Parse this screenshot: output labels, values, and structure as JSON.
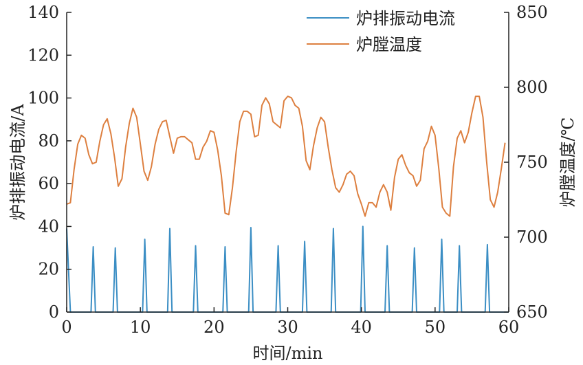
{
  "chart_data": {
    "type": "line",
    "xlabel": "时间/min",
    "ylabel_left": "炉排振动电流/A",
    "ylabel_right": "炉膛温度/℃",
    "xlim": [
      0,
      60
    ],
    "ylim_left": [
      0,
      140
    ],
    "ylim_right": [
      650,
      850
    ],
    "x_ticks": [
      0,
      10,
      20,
      30,
      40,
      50,
      60
    ],
    "y_ticks_left": [
      0,
      20,
      40,
      60,
      80,
      100,
      120,
      140
    ],
    "y_ticks_right": [
      650,
      700,
      750,
      800,
      850
    ],
    "grid": false,
    "legend_position": "top-right",
    "colors": {
      "current": "#3b8ec4",
      "temperature": "#dd7f3f"
    },
    "series": [
      {
        "name": "炉排振动电流",
        "axis": "left",
        "x": [
          0,
          0.5,
          3.3,
          3.6,
          3.9,
          6.3,
          6.6,
          6.9,
          10.3,
          10.6,
          10.9,
          13.7,
          14.0,
          14.3,
          17.2,
          17.5,
          17.8,
          21.2,
          21.5,
          21.8,
          24.7,
          25.0,
          25.3,
          28.4,
          28.7,
          29.0,
          32.0,
          32.3,
          32.6,
          35.9,
          36.2,
          36.5,
          39.9,
          40.2,
          40.5,
          43.2,
          43.5,
          43.8,
          46.9,
          47.2,
          47.5,
          50.6,
          50.9,
          51.2,
          53.0,
          53.3,
          53.6,
          56.8,
          57.1,
          57.4,
          60
        ],
        "values": [
          39,
          0,
          0,
          30.5,
          0,
          0,
          30,
          0,
          0,
          34,
          0,
          0,
          39,
          0,
          0,
          31,
          0,
          0,
          30.5,
          0,
          0,
          39.5,
          0,
          0,
          31,
          0,
          0,
          33,
          0,
          0,
          39,
          0,
          0,
          40,
          0,
          0,
          31,
          0,
          0,
          30,
          0,
          0,
          34,
          0,
          0,
          31,
          0,
          0,
          31.5,
          0,
          0
        ]
      },
      {
        "name": "炉膛温度",
        "axis": "right",
        "x": [
          0,
          0.5,
          1.0,
          1.5,
          2.0,
          2.5,
          3.0,
          3.5,
          4.0,
          4.5,
          5.0,
          5.5,
          6.0,
          6.5,
          7.0,
          7.5,
          8.0,
          8.5,
          9.0,
          9.5,
          10.0,
          10.5,
          11.0,
          11.5,
          12.0,
          12.5,
          13.0,
          13.5,
          14.0,
          14.5,
          15.0,
          15.5,
          16.0,
          16.5,
          17.0,
          17.5,
          18.0,
          18.5,
          19.0,
          19.5,
          20.0,
          20.5,
          21.0,
          21.5,
          22.0,
          22.5,
          23.0,
          23.5,
          24.0,
          24.5,
          25.0,
          25.5,
          26.0,
          26.5,
          27.0,
          27.5,
          28.0,
          28.5,
          29.0,
          29.5,
          30.0,
          30.5,
          31.0,
          31.5,
          32.0,
          32.5,
          33.0,
          33.5,
          34.0,
          34.5,
          35.0,
          35.5,
          36.0,
          36.5,
          37.0,
          37.5,
          38.0,
          38.5,
          39.0,
          39.5,
          40.0,
          40.5,
          41.0,
          41.5,
          42.0,
          42.5,
          43.0,
          43.5,
          44.0,
          44.5,
          45.0,
          45.5,
          46.0,
          46.5,
          47.0,
          47.5,
          48.0,
          48.5,
          49.0,
          49.5,
          50.0,
          50.5,
          51.0,
          51.5,
          52.0,
          52.5,
          53.0,
          53.5,
          54.0,
          54.5,
          55.0,
          55.5,
          56.0,
          56.5,
          57.0,
          57.5,
          58.0,
          58.5,
          59.0,
          59.5
        ],
        "values": [
          722,
          723,
          745,
          762,
          768,
          766,
          755,
          749,
          750,
          764,
          775,
          779,
          769,
          753,
          734,
          739,
          760,
          776,
          786,
          780,
          762,
          744,
          738,
          747,
          762,
          772,
          777,
          778,
          767,
          756,
          766,
          767,
          767,
          765,
          763,
          752,
          752,
          760,
          764,
          771,
          770,
          758,
          741,
          716,
          715,
          733,
          757,
          777,
          784,
          784,
          782,
          767,
          768,
          788,
          793,
          789,
          777,
          775,
          773,
          791,
          794,
          793,
          788,
          786,
          774,
          751,
          745,
          761,
          773,
          780,
          777,
          760,
          745,
          733,
          730,
          735,
          742,
          744,
          741,
          729,
          722,
          714,
          723,
          723,
          720,
          730,
          735,
          730,
          718,
          740,
          752,
          755,
          748,
          743,
          741,
          734,
          738,
          759,
          764,
          774,
          768,
          746,
          720,
          716,
          714,
          747,
          766,
          771,
          763,
          770,
          783,
          794,
          794,
          780,
          750,
          725,
          720,
          730,
          746,
          763
        ]
      }
    ]
  }
}
